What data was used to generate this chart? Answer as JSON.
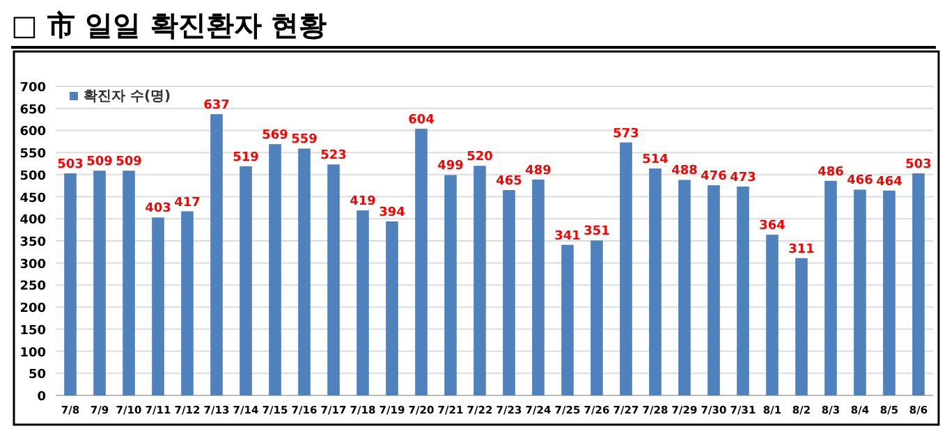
{
  "chart_data": {
    "type": "bar",
    "title": "□ 市 일일 확진환자 현황",
    "categories": [
      "7/8",
      "7/9",
      "7/10",
      "7/11",
      "7/12",
      "7/13",
      "7/14",
      "7/15",
      "7/16",
      "7/17",
      "7/18",
      "7/19",
      "7/20",
      "7/21",
      "7/22",
      "7/23",
      "7/24",
      "7/25",
      "7/26",
      "7/27",
      "7/28",
      "7/29",
      "7/30",
      "7/31",
      "8/1",
      "8/2",
      "8/3",
      "8/4",
      "8/5",
      "8/6"
    ],
    "series": [
      {
        "name": "확진자 수(명)",
        "color": "#4f81bd",
        "values": [
          503,
          509,
          509,
          403,
          417,
          637,
          519,
          569,
          559,
          523,
          419,
          394,
          604,
          499,
          520,
          465,
          489,
          341,
          351,
          573,
          514,
          488,
          476,
          473,
          364,
          311,
          486,
          466,
          464,
          503
        ]
      }
    ],
    "ylim": [
      0,
      700
    ],
    "yticks": [
      0,
      50,
      100,
      150,
      200,
      250,
      300,
      350,
      400,
      450,
      500,
      550,
      600,
      650,
      700
    ],
    "grid": "y",
    "legend": "top left",
    "data_labels": true
  }
}
